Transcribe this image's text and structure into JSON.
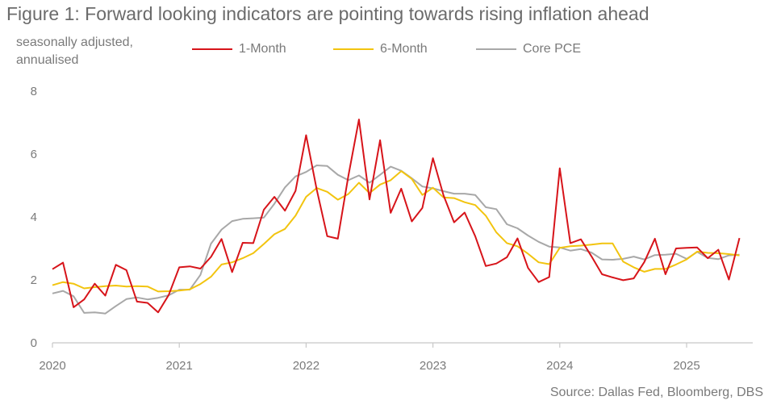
{
  "title": "Figure 1: Forward looking indicators are pointing towards rising inflation ahead",
  "ylabel_lines": [
    "seasonally adjusted,",
    "annualised"
  ],
  "source": "Source: Dallas Fed, Bloomberg, DBS",
  "chart_data": {
    "type": "line",
    "title": "Figure 1: Forward looking indicators are pointing towards rising inflation ahead",
    "ylabel": "seasonally adjusted, annualised",
    "xlabel": "",
    "ylim": [
      0,
      8
    ],
    "yticks": [
      "0",
      "2",
      "4",
      "6",
      "8"
    ],
    "xticks": [
      "2020",
      "2021",
      "2022",
      "2023",
      "2024",
      "2025"
    ],
    "x_start": "2020-01",
    "x_end": "2025-06",
    "grid": false,
    "legend_position": "top",
    "series": [
      {
        "name": "1-Month",
        "color": "#d7141a",
        "values": [
          2.34,
          2.55,
          1.13,
          1.38,
          1.88,
          1.5,
          2.48,
          2.31,
          1.31,
          1.27,
          0.97,
          1.52,
          2.4,
          2.43,
          2.36,
          2.73,
          3.3,
          2.25,
          3.18,
          3.17,
          4.23,
          4.64,
          4.2,
          4.83,
          6.6,
          4.88,
          3.39,
          3.31,
          5.31,
          7.1,
          4.56,
          6.44,
          4.13,
          4.9,
          3.86,
          4.29,
          5.87,
          4.69,
          3.83,
          4.14,
          3.39,
          2.44,
          2.52,
          2.72,
          3.32,
          2.38,
          1.93,
          2.09,
          5.55,
          3.17,
          3.29,
          2.75,
          2.18,
          2.08,
          1.99,
          2.05,
          2.57,
          3.31,
          2.18,
          3.0,
          3.02,
          3.03,
          2.69,
          2.96,
          2.01,
          3.33
        ]
      },
      {
        "name": "6-Month",
        "color": "#f2c40f",
        "values": [
          1.83,
          1.93,
          1.88,
          1.73,
          1.77,
          1.8,
          1.82,
          1.79,
          1.8,
          1.79,
          1.63,
          1.64,
          1.66,
          1.7,
          1.87,
          2.1,
          2.49,
          2.56,
          2.69,
          2.85,
          3.14,
          3.45,
          3.62,
          4.04,
          4.64,
          4.92,
          4.8,
          4.55,
          4.73,
          5.09,
          4.76,
          5.03,
          5.17,
          5.46,
          5.21,
          4.7,
          4.93,
          4.62,
          4.6,
          4.47,
          4.38,
          4.04,
          3.51,
          3.17,
          3.07,
          2.83,
          2.56,
          2.5,
          3.02,
          3.07,
          3.09,
          3.12,
          3.16,
          3.16,
          2.58,
          2.4,
          2.26,
          2.35,
          2.35,
          2.49,
          2.65,
          2.9,
          2.86,
          2.85,
          2.82,
          2.78
        ]
      },
      {
        "name": "Core PCE",
        "color": "#a8a8a8",
        "values": [
          1.57,
          1.65,
          1.48,
          0.95,
          0.97,
          0.93,
          1.17,
          1.39,
          1.44,
          1.38,
          1.43,
          1.51,
          1.69,
          1.69,
          2.16,
          3.15,
          3.6,
          3.87,
          3.94,
          3.96,
          3.98,
          4.42,
          4.94,
          5.29,
          5.43,
          5.64,
          5.62,
          5.34,
          5.17,
          5.32,
          5.09,
          5.34,
          5.6,
          5.47,
          5.23,
          4.97,
          4.91,
          4.82,
          4.74,
          4.74,
          4.7,
          4.31,
          4.25,
          3.77,
          3.64,
          3.41,
          3.21,
          3.06,
          3.03,
          2.93,
          2.98,
          2.87,
          2.65,
          2.64,
          2.67,
          2.74,
          2.65,
          2.79,
          2.8,
          2.83,
          2.67,
          2.89,
          2.7,
          2.66,
          2.78,
          2.8
        ]
      }
    ]
  }
}
